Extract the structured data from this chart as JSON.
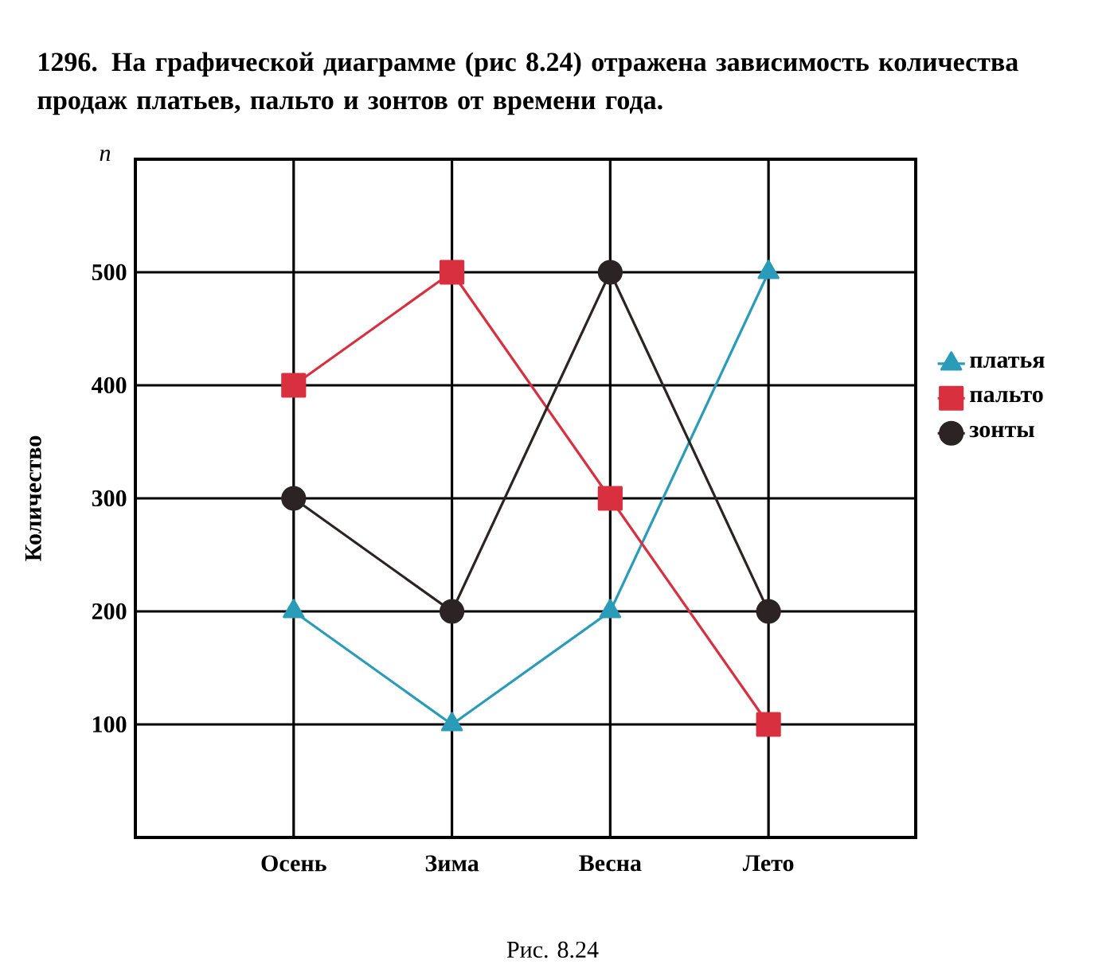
{
  "chart_data": {
    "type": "line",
    "title": "**1296.** На графической диаграмме (рис 8.24) отражена зависимость количества продаж платьев, пальто и зонтов от времени года.",
    "ylabel": "Количество",
    "annotations": [
      "n",
      "Рис. 8.24"
    ],
    "categories": [
      "Осень",
      "Зима",
      "Весна",
      "Лето"
    ],
    "series": [
      {
        "name": "платья",
        "color": "#2a9bb8",
        "marker": "triangle",
        "values": [
          200,
          100,
          200,
          500
        ]
      },
      {
        "name": "пальто",
        "color": "#d9303f",
        "marker": "square",
        "values": [
          400,
          500,
          300,
          100
        ]
      },
      {
        "name": "зонты",
        "color": "#2b2324",
        "marker": "circle",
        "values": [
          300,
          200,
          500,
          200
        ]
      }
    ],
    "ylim": [
      0,
      600
    ],
    "yticks": [
      100,
      200,
      300,
      400,
      500
    ],
    "grid": true,
    "legend": "right",
    "line_style": "solid"
  }
}
